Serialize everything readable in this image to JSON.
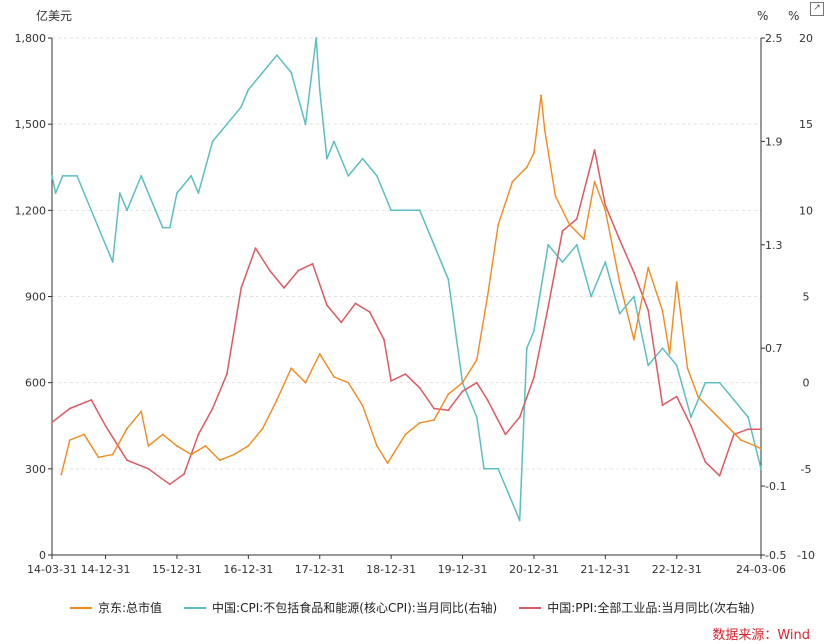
{
  "chart_data": {
    "type": "line",
    "left_axis": {
      "unit": "亿美元",
      "min": 0,
      "max": 1800,
      "ticks": [
        0,
        300,
        600,
        900,
        "1,200",
        "1,500",
        "1,800"
      ],
      "tick_values": [
        0,
        300,
        600,
        900,
        1200,
        1500,
        1800
      ]
    },
    "right_axis": {
      "unit": "%",
      "min": -0.5,
      "max": 2.5,
      "ticks": [
        -0.5,
        -0.1,
        0.7,
        1.3,
        1.9,
        2.5
      ]
    },
    "right_axis2": {
      "unit": "%",
      "min": -10,
      "max": 20,
      "ticks": [
        -10,
        -5,
        0,
        5,
        10,
        15,
        20
      ]
    },
    "x_axis": {
      "labels": [
        "14-03-31",
        "14-12-31",
        "15-12-31",
        "16-12-31",
        "17-12-31",
        "18-12-31",
        "19-12-31",
        "20-12-31",
        "21-12-31",
        "22-12-31",
        "24-03-06"
      ],
      "label_years": [
        2014.25,
        2015.0,
        2016.0,
        2017.0,
        2018.0,
        2019.0,
        2020.0,
        2021.0,
        2022.0,
        2023.0,
        2024.18
      ],
      "start": 2014.25,
      "end": 2024.18
    },
    "series": [
      {
        "name": "京东:总市值",
        "axis": "left",
        "color": "#f28a1e",
        "x": [
          2014.38,
          2014.5,
          2014.7,
          2014.9,
          2015.1,
          2015.3,
          2015.5,
          2015.6,
          2015.8,
          2016.0,
          2016.2,
          2016.4,
          2016.6,
          2016.8,
          2017.0,
          2017.2,
          2017.4,
          2017.6,
          2017.8,
          2018.0,
          2018.2,
          2018.4,
          2018.6,
          2018.8,
          2018.95,
          2019.2,
          2019.4,
          2019.6,
          2019.8,
          2020.0,
          2020.2,
          2020.35,
          2020.5,
          2020.7,
          2020.9,
          2021.0,
          2021.1,
          2021.15,
          2021.3,
          2021.5,
          2021.7,
          2021.85,
          2022.0,
          2022.2,
          2022.4,
          2022.6,
          2022.8,
          2022.9,
          2023.0,
          2023.15,
          2023.3,
          2023.5,
          2023.7,
          2023.9,
          2024.1,
          2024.18
        ],
        "values": [
          280,
          400,
          420,
          340,
          350,
          440,
          500,
          380,
          420,
          380,
          350,
          380,
          330,
          350,
          380,
          440,
          540,
          650,
          600,
          700,
          620,
          600,
          520,
          380,
          320,
          420,
          460,
          470,
          560,
          600,
          680,
          900,
          1150,
          1300,
          1350,
          1400,
          1600,
          1480,
          1250,
          1150,
          1100,
          1300,
          1200,
          950,
          750,
          1000,
          850,
          700,
          950,
          650,
          550,
          500,
          450,
          400,
          380,
          370
        ]
      },
      {
        "name": "中国:CPI:不包括食品和能源(核心CPI):当月同比(右轴)",
        "axis": "right",
        "color": "#5bbfc1",
        "x": [
          2014.25,
          2014.3,
          2014.4,
          2014.6,
          2014.9,
          2015.1,
          2015.2,
          2015.3,
          2015.5,
          2015.7,
          2015.8,
          2015.9,
          2016.0,
          2016.2,
          2016.3,
          2016.5,
          2016.7,
          2016.9,
          2017.0,
          2017.2,
          2017.4,
          2017.6,
          2017.8,
          2017.95,
          2018.0,
          2018.05,
          2018.1,
          2018.2,
          2018.4,
          2018.6,
          2018.8,
          2019.0,
          2019.2,
          2019.4,
          2019.6,
          2019.8,
          2020.0,
          2020.1,
          2020.2,
          2020.3,
          2020.5,
          2020.8,
          2020.9,
          2021.0,
          2021.2,
          2021.4,
          2021.6,
          2021.8,
          2022.0,
          2022.2,
          2022.4,
          2022.6,
          2022.8,
          2023.0,
          2023.2,
          2023.4,
          2023.6,
          2023.8,
          2024.0,
          2024.18
        ],
        "values": [
          1.7,
          1.6,
          1.7,
          1.7,
          1.4,
          1.2,
          1.6,
          1.5,
          1.7,
          1.5,
          1.4,
          1.4,
          1.6,
          1.7,
          1.6,
          1.9,
          2.0,
          2.1,
          2.2,
          2.3,
          2.4,
          2.3,
          2.0,
          2.5,
          2.2,
          2.0,
          1.8,
          1.9,
          1.7,
          1.8,
          1.7,
          1.5,
          1.5,
          1.5,
          1.3,
          1.1,
          0.5,
          0.4,
          0.3,
          0.0,
          0.0,
          -0.3,
          0.7,
          0.8,
          1.3,
          1.2,
          1.3,
          1.0,
          1.2,
          0.9,
          1.0,
          0.6,
          0.7,
          0.6,
          0.3,
          0.5,
          0.5,
          0.4,
          0.3,
          0.0
        ]
      },
      {
        "name": "中国:PPI:全部工业品:当月同比(次右轴)",
        "axis": "right2",
        "color": "#dc5a64",
        "x": [
          2014.25,
          2014.5,
          2014.8,
          2015.0,
          2015.3,
          2015.6,
          2015.9,
          2016.1,
          2016.3,
          2016.5,
          2016.7,
          2016.9,
          2017.1,
          2017.3,
          2017.5,
          2017.7,
          2017.9,
          2018.1,
          2018.3,
          2018.5,
          2018.7,
          2018.9,
          2019.0,
          2019.2,
          2019.4,
          2019.6,
          2019.8,
          2020.0,
          2020.2,
          2020.35,
          2020.6,
          2020.8,
          2021.0,
          2021.2,
          2021.4,
          2021.6,
          2021.85,
          2022.0,
          2022.2,
          2022.4,
          2022.6,
          2022.8,
          2023.0,
          2023.2,
          2023.4,
          2023.6,
          2023.8,
          2024.0,
          2024.18
        ],
        "values": [
          -2.3,
          -1.5,
          -1.0,
          -2.5,
          -4.5,
          -5.0,
          -5.9,
          -5.3,
          -3.0,
          -1.5,
          0.5,
          5.5,
          7.8,
          6.5,
          5.5,
          6.5,
          6.9,
          4.5,
          3.5,
          4.6,
          4.1,
          2.5,
          0.1,
          0.5,
          -0.3,
          -1.5,
          -1.6,
          -0.5,
          0.0,
          -1.0,
          -3.0,
          -2.0,
          0.3,
          4.4,
          8.8,
          9.5,
          13.5,
          10.3,
          8.3,
          6.4,
          4.2,
          -1.3,
          -0.8,
          -2.5,
          -4.6,
          -5.4,
          -3.0,
          -2.7,
          -2.7
        ]
      }
    ]
  },
  "source_text": "数据来源：Wind",
  "export_icon": "share-icon"
}
